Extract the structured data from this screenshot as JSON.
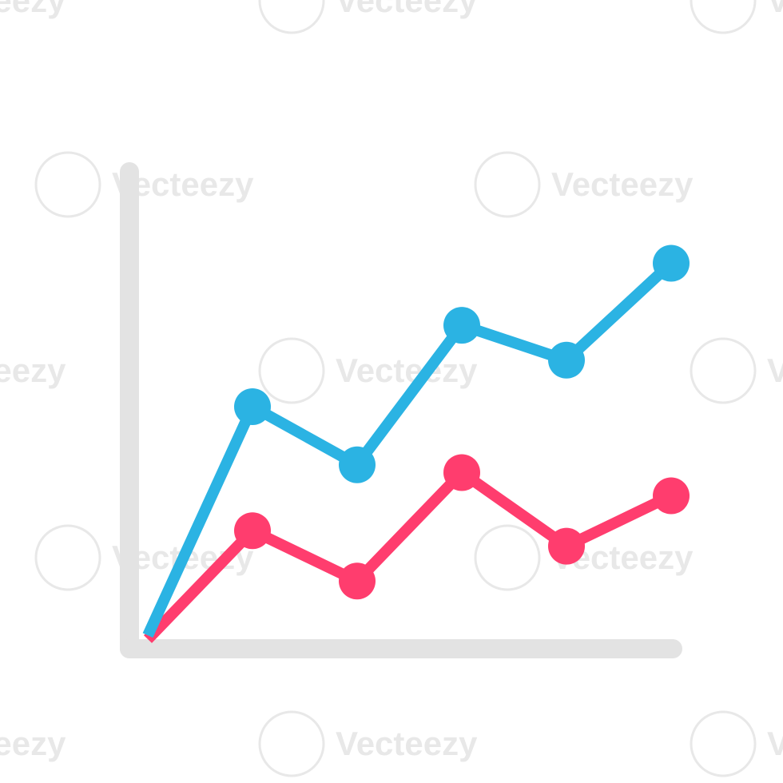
{
  "watermark": {
    "text": "Vecteezy",
    "color": "#d6d6d6"
  },
  "colors": {
    "axis": "#e3e3e3",
    "series_blue": "#2bb3e3",
    "series_pink": "#ff3d6e"
  },
  "chart_data": {
    "type": "line",
    "title": "",
    "xlabel": "",
    "ylabel": "",
    "x": [
      0,
      1,
      2,
      3,
      4,
      5
    ],
    "xlim": [
      0,
      5
    ],
    "ylim": [
      0,
      10
    ],
    "grid": false,
    "legend": "none",
    "series": [
      {
        "values": [
          0.1,
          6.0,
          4.5,
          8.1,
          7.2,
          9.7
        ],
        "color": "#2bb3e3"
      },
      {
        "values": [
          0.0,
          2.8,
          1.5,
          4.3,
          2.4,
          3.7
        ],
        "color": "#ff3d6e"
      }
    ]
  }
}
